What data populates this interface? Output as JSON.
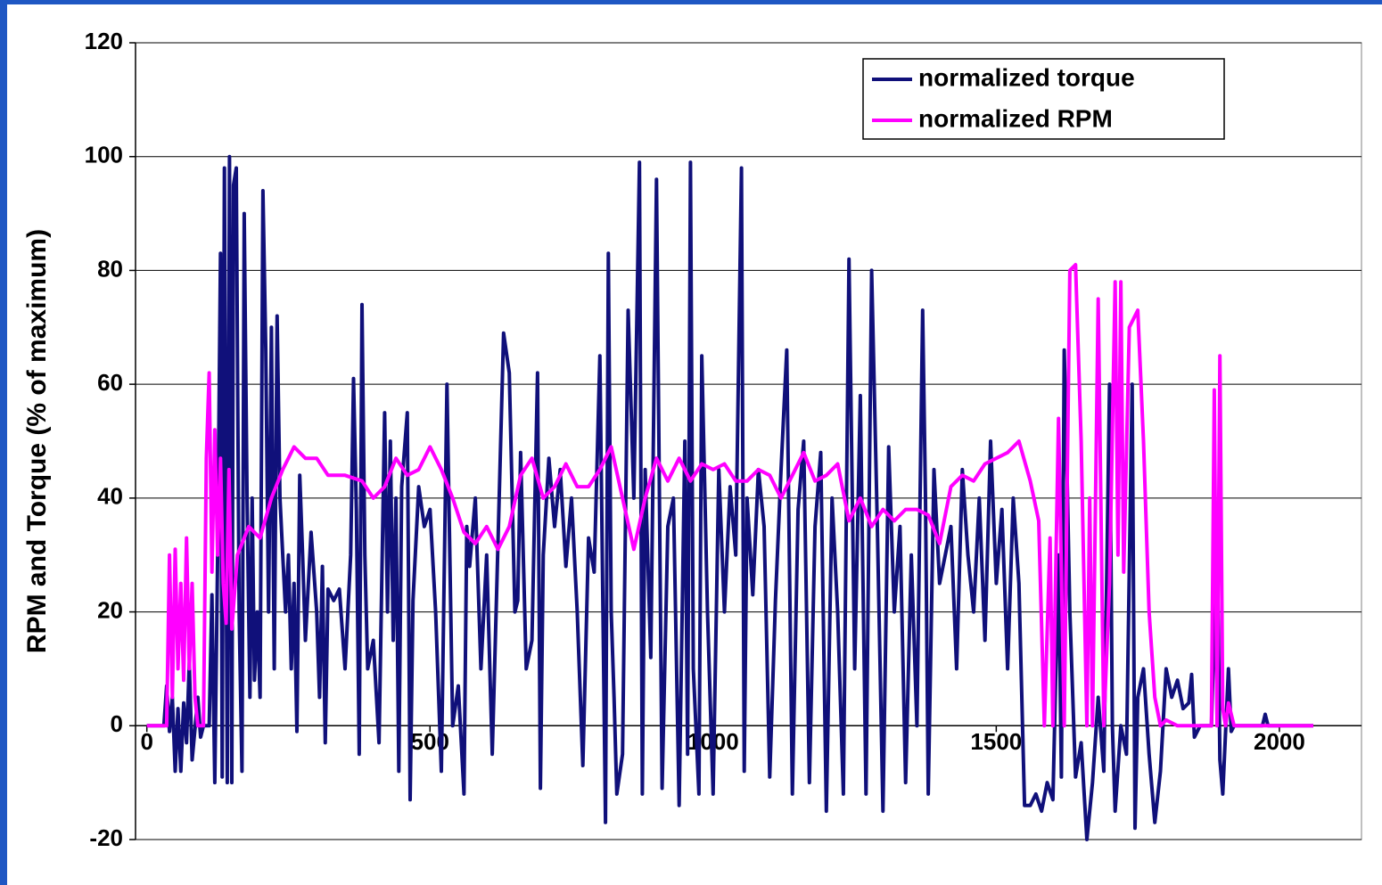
{
  "chart_data": {
    "type": "line",
    "y_label": "RPM and Torque (% of maximum)",
    "xlim": [
      -20,
      2145
    ],
    "ylim": [
      -20,
      120
    ],
    "xticks": [
      0,
      500,
      1000,
      1500,
      2000
    ],
    "yticks": [
      -20,
      0,
      20,
      40,
      60,
      80,
      100,
      120
    ],
    "grid": true,
    "legend": "top-right",
    "series": [
      {
        "name": "normalized torque",
        "color": "#10107a",
        "x": [
          0,
          30,
          35,
          40,
          45,
          50,
          55,
          60,
          65,
          70,
          75,
          80,
          90,
          95,
          100,
          110,
          115,
          120,
          125,
          130,
          133,
          137,
          142,
          146,
          150,
          153,
          158,
          163,
          168,
          172,
          177,
          182,
          186,
          190,
          195,
          200,
          205,
          210,
          215,
          220,
          225,
          230,
          235,
          240,
          245,
          250,
          255,
          260,
          265,
          270,
          275,
          280,
          290,
          300,
          305,
          310,
          315,
          320,
          330,
          340,
          350,
          360,
          365,
          370,
          375,
          380,
          385,
          390,
          400,
          410,
          420,
          425,
          430,
          435,
          440,
          445,
          450,
          460,
          465,
          470,
          480,
          490,
          500,
          510,
          520,
          530,
          540,
          550,
          560,
          565,
          570,
          580,
          590,
          600,
          610,
          620,
          630,
          640,
          650,
          655,
          660,
          670,
          680,
          690,
          695,
          700,
          710,
          720,
          730,
          740,
          750,
          760,
          770,
          780,
          790,
          800,
          810,
          815,
          820,
          825,
          830,
          840,
          850,
          860,
          870,
          875,
          880,
          890,
          900,
          910,
          920,
          930,
          940,
          950,
          955,
          960,
          965,
          975,
          980,
          990,
          1000,
          1010,
          1020,
          1030,
          1040,
          1050,
          1055,
          1060,
          1070,
          1080,
          1090,
          1100,
          1110,
          1120,
          1130,
          1140,
          1150,
          1160,
          1170,
          1180,
          1190,
          1200,
          1210,
          1220,
          1230,
          1240,
          1250,
          1260,
          1270,
          1280,
          1290,
          1300,
          1310,
          1320,
          1330,
          1340,
          1350,
          1360,
          1370,
          1375,
          1380,
          1390,
          1400,
          1410,
          1420,
          1430,
          1440,
          1450,
          1460,
          1470,
          1480,
          1490,
          1500,
          1510,
          1520,
          1530,
          1540,
          1550,
          1560,
          1570,
          1580,
          1590,
          1600,
          1610,
          1615,
          1620,
          1625,
          1630,
          1640,
          1650,
          1660,
          1670,
          1680,
          1690,
          1700,
          1705,
          1710,
          1720,
          1730,
          1740,
          1745,
          1750,
          1760,
          1770,
          1780,
          1790,
          1800,
          1810,
          1820,
          1830,
          1840,
          1845,
          1850,
          1860,
          1870,
          1880,
          1890,
          1895,
          1900,
          1910,
          1915,
          1920,
          1970,
          1975,
          1980,
          2060
        ],
        "values": [
          0,
          0,
          7,
          -1,
          5,
          -8,
          3,
          -8,
          4,
          -3,
          11,
          -6,
          5,
          -2,
          0,
          0,
          23,
          -10,
          30,
          83,
          -9,
          98,
          -10,
          100,
          -10,
          95,
          98,
          20,
          -8,
          90,
          40,
          5,
          40,
          8,
          20,
          5,
          94,
          66,
          20,
          70,
          10,
          72,
          40,
          30,
          20,
          30,
          10,
          25,
          -1,
          44,
          30,
          15,
          34,
          20,
          5,
          28,
          -3,
          24,
          22,
          24,
          10,
          30,
          61,
          38,
          -5,
          74,
          30,
          10,
          15,
          -3,
          55,
          20,
          50,
          15,
          40,
          -8,
          42,
          55,
          -13,
          22,
          42,
          35,
          38,
          20,
          -8,
          60,
          0,
          7,
          -12,
          35,
          28,
          40,
          10,
          30,
          -5,
          32,
          69,
          62,
          20,
          22,
          48,
          10,
          15,
          62,
          -11,
          30,
          47,
          35,
          45,
          28,
          40,
          20,
          -7,
          33,
          27,
          65,
          -17,
          83,
          20,
          5,
          -12,
          -5,
          73,
          40,
          99,
          -12,
          45,
          12,
          96,
          -11,
          35,
          40,
          -14,
          50,
          -5,
          99,
          10,
          -12,
          65,
          20,
          -12,
          45,
          20,
          42,
          30,
          98,
          -8,
          40,
          23,
          45,
          35,
          -9,
          22,
          45,
          66,
          -12,
          38,
          50,
          -10,
          35,
          48,
          -15,
          40,
          20,
          -12,
          82,
          10,
          58,
          -12,
          80,
          35,
          -15,
          49,
          20,
          35,
          -10,
          30,
          0,
          73,
          40,
          -12,
          45,
          25,
          30,
          35,
          10,
          45,
          30,
          20,
          40,
          15,
          50,
          25,
          38,
          10,
          40,
          25,
          -14,
          -14,
          -12,
          -15,
          -10,
          -13,
          30,
          -9,
          66,
          45,
          20,
          -9,
          -3,
          -20,
          -10,
          5,
          -8,
          60,
          0,
          -15,
          0,
          -5,
          60,
          -18,
          5,
          10,
          -5,
          -17,
          -8,
          10,
          5,
          8,
          3,
          4,
          9,
          -2,
          0,
          0,
          0,
          35,
          -6,
          -12,
          10,
          -1,
          0,
          0,
          2,
          0,
          0
        ]
      },
      {
        "name": "normalized RPM",
        "color": "#ff00ff",
        "x": [
          0,
          35,
          40,
          45,
          50,
          55,
          60,
          65,
          70,
          75,
          80,
          85,
          90,
          100,
          105,
          110,
          115,
          120,
          125,
          130,
          135,
          140,
          145,
          150,
          160,
          180,
          200,
          220,
          240,
          260,
          280,
          300,
          320,
          350,
          380,
          400,
          420,
          440,
          460,
          480,
          500,
          520,
          540,
          560,
          580,
          600,
          620,
          640,
          660,
          680,
          700,
          720,
          740,
          760,
          780,
          800,
          820,
          840,
          860,
          880,
          900,
          920,
          940,
          960,
          980,
          1000,
          1020,
          1040,
          1060,
          1080,
          1100,
          1120,
          1140,
          1160,
          1180,
          1200,
          1220,
          1240,
          1260,
          1280,
          1300,
          1320,
          1340,
          1360,
          1380,
          1400,
          1420,
          1440,
          1460,
          1480,
          1500,
          1520,
          1540,
          1560,
          1575,
          1585,
          1595,
          1600,
          1610,
          1620,
          1630,
          1640,
          1650,
          1660,
          1665,
          1670,
          1680,
          1690,
          1700,
          1710,
          1715,
          1720,
          1725,
          1735,
          1750,
          1760,
          1770,
          1780,
          1790,
          1800,
          1820,
          1880,
          1885,
          1890,
          1895,
          1900,
          1905,
          1910,
          1920,
          2060
        ],
        "values": [
          0,
          0,
          30,
          5,
          31,
          10,
          25,
          8,
          33,
          10,
          25,
          5,
          0,
          0,
          47,
          62,
          27,
          52,
          30,
          47,
          25,
          18,
          45,
          17,
          30,
          35,
          33,
          40,
          45,
          49,
          47,
          47,
          44,
          44,
          43,
          40,
          42,
          47,
          44,
          45,
          49,
          45,
          40,
          34,
          32,
          35,
          31,
          35,
          44,
          47,
          40,
          42,
          46,
          42,
          42,
          45,
          49,
          40,
          31,
          40,
          47,
          43,
          47,
          43,
          46,
          45,
          46,
          43,
          43,
          45,
          44,
          40,
          44,
          48,
          43,
          44,
          46,
          36,
          40,
          35,
          38,
          36,
          38,
          38,
          37,
          32,
          42,
          44,
          43,
          46,
          47,
          48,
          50,
          43,
          36,
          0,
          33,
          0,
          54,
          0,
          80,
          81,
          50,
          0,
          40,
          0,
          75,
          0,
          25,
          78,
          30,
          78,
          27,
          70,
          73,
          50,
          20,
          5,
          0,
          1,
          0,
          0,
          59,
          0,
          65,
          3,
          0,
          4,
          0,
          0
        ]
      }
    ]
  }
}
